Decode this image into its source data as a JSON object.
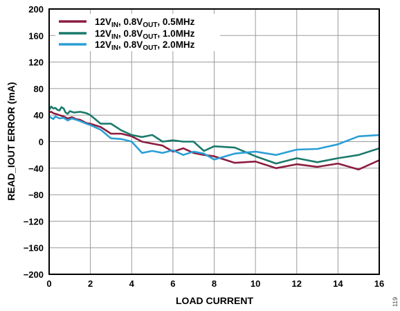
{
  "chart_data": {
    "type": "line",
    "title": "",
    "xlabel": "LOAD CURRENT",
    "ylabel": "READ_IOUT ERROR (mA)",
    "xlim": [
      0,
      16
    ],
    "ylim": [
      -200,
      200
    ],
    "xticks": [
      0,
      2,
      4,
      6,
      8,
      10,
      12,
      14,
      16
    ],
    "yticks": [
      200,
      160,
      120,
      80,
      40,
      0,
      -40,
      -80,
      -120,
      -160,
      -200
    ],
    "xtick_labels": [
      "0",
      "2",
      "4",
      "6",
      "8",
      "10",
      "12",
      "14",
      "16"
    ],
    "ytick_labels": [
      "200",
      "160",
      "120",
      "80",
      "40",
      "0",
      "−40",
      "−80",
      "−120",
      "−160",
      "−200"
    ],
    "grid": true,
    "legend_position": "top-left",
    "series": [
      {
        "legend": {
          "lead": "12V",
          "sub1": "IN",
          "mid": ", 0.8V",
          "sub2": "OUT",
          "tail": ", 0.5MHz"
        },
        "color": "#8c1d40",
        "x": [
          0,
          0.1,
          0.2,
          0.3,
          0.5,
          0.7,
          0.9,
          1.1,
          1.3,
          1.5,
          1.8,
          2.0,
          2.5,
          3.0,
          3.5,
          4.0,
          4.5,
          5.0,
          5.5,
          6.0,
          6.5,
          7.0,
          7.5,
          8.0,
          9.0,
          10.0,
          11.0,
          12.0,
          13.0,
          14.0,
          15.0,
          16.0
        ],
        "y": [
          44,
          45,
          43,
          42,
          40,
          38,
          35,
          37,
          34,
          33,
          28,
          27,
          22,
          12,
          12,
          8,
          0,
          -3,
          -6,
          -15,
          -10,
          -17,
          -20,
          -22,
          -32,
          -30,
          -40,
          -34,
          -38,
          -33,
          -42,
          -28
        ]
      },
      {
        "legend": {
          "lead": "12V",
          "sub1": "IN",
          "mid": ", 0.8V",
          "sub2": "OUT",
          "tail": ", 1.0MHz"
        },
        "color": "#1a7a6b",
        "x": [
          0,
          0.1,
          0.2,
          0.3,
          0.4,
          0.5,
          0.6,
          0.7,
          0.8,
          0.9,
          1.0,
          1.2,
          1.5,
          1.8,
          2.0,
          2.5,
          3.0,
          3.5,
          4.0,
          4.5,
          5.0,
          5.5,
          6.0,
          6.5,
          7.0,
          7.5,
          8.0,
          9.0,
          10.0,
          11.0,
          12.0,
          13.0,
          14.0,
          15.0,
          16.0
        ],
        "y": [
          48,
          53,
          50,
          51,
          48,
          47,
          52,
          50,
          44,
          42,
          46,
          44,
          45,
          43,
          40,
          27,
          27,
          17,
          10,
          7,
          10,
          0,
          2,
          0,
          0,
          -14,
          -7,
          -9,
          -22,
          -33,
          -25,
          -31,
          -25,
          -20,
          -10
        ]
      },
      {
        "legend": {
          "lead": "12V",
          "sub1": "IN",
          "mid": ", 0.8V",
          "sub2": "OUT",
          "tail": ", 2.0MHz"
        },
        "color": "#2a9fd6",
        "x": [
          0,
          0.1,
          0.2,
          0.3,
          0.5,
          0.7,
          0.9,
          1.1,
          1.3,
          1.5,
          1.8,
          2.0,
          2.5,
          3.0,
          3.5,
          4.0,
          4.5,
          5.0,
          5.5,
          6.0,
          6.5,
          7.0,
          7.5,
          8.0,
          9.0,
          10.0,
          11.0,
          12.0,
          13.0,
          14.0,
          15.0,
          16.0
        ],
        "y": [
          38,
          36,
          34,
          38,
          35,
          36,
          32,
          35,
          33,
          31,
          27,
          25,
          18,
          5,
          4,
          0,
          -17,
          -14,
          -17,
          -13,
          -20,
          -15,
          -18,
          -27,
          -18,
          -15,
          -20,
          -12,
          -11,
          -4,
          8,
          10
        ]
      }
    ]
  },
  "corner_note": "119"
}
